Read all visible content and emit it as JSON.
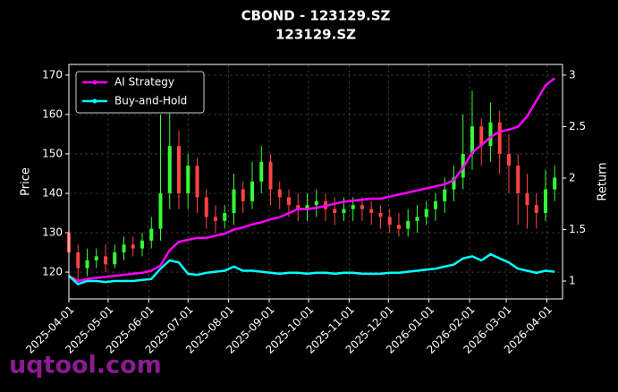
{
  "chart_data": {
    "type": "candlestick",
    "title": "CBOND - 123129.SZ",
    "subtitle": "123129.SZ",
    "y_label": "Price",
    "y2_label": "Return",
    "watermark": "uqtool.com",
    "up_color": "#33ff33",
    "down_color": "#ff4444",
    "grid": true,
    "legend": "upper-left",
    "x": [
      "2025-04-01",
      "2025-04-08",
      "2025-04-15",
      "2025-04-22",
      "2025-04-29",
      "2025-05-06",
      "2025-05-13",
      "2025-05-20",
      "2025-05-27",
      "2025-06-03",
      "2025-06-10",
      "2025-06-17",
      "2025-06-24",
      "2025-07-01",
      "2025-07-08",
      "2025-07-15",
      "2025-07-22",
      "2025-07-29",
      "2025-08-05",
      "2025-08-12",
      "2025-08-19",
      "2025-08-26",
      "2025-09-02",
      "2025-09-09",
      "2025-09-16",
      "2025-09-23",
      "2025-09-30",
      "2025-10-07",
      "2025-10-14",
      "2025-10-21",
      "2025-10-28",
      "2025-11-04",
      "2025-11-11",
      "2025-11-18",
      "2025-11-25",
      "2025-12-02",
      "2025-12-09",
      "2025-12-16",
      "2025-12-23",
      "2025-12-30",
      "2026-01-06",
      "2026-01-13",
      "2026-01-20",
      "2026-01-27",
      "2026-02-03",
      "2026-02-10",
      "2026-02-17",
      "2026-02-24",
      "2026-03-03",
      "2026-03-10",
      "2026-03-17",
      "2026-03-24",
      "2026-03-31",
      "2026-04-07"
    ],
    "open": [
      130,
      125,
      121,
      123,
      124,
      122,
      125,
      127,
      126,
      128,
      131,
      140,
      152,
      140,
      147,
      139,
      134,
      133,
      135,
      141,
      138,
      143,
      148,
      141,
      139,
      137,
      136,
      137,
      138,
      136,
      135,
      136,
      137,
      136,
      135,
      134,
      132,
      131,
      133,
      134,
      136,
      138,
      141,
      144,
      150,
      157,
      152,
      158,
      150,
      147,
      140,
      137,
      135,
      141
    ],
    "high": [
      132,
      127,
      126,
      126,
      127,
      127,
      129,
      129,
      130,
      134,
      160,
      165,
      156,
      150,
      149,
      141,
      137,
      137,
      145,
      143,
      148,
      152,
      150,
      143,
      141,
      140,
      140,
      141,
      140,
      139,
      139,
      139,
      139,
      138,
      137,
      136,
      135,
      136,
      137,
      138,
      140,
      144,
      147,
      160,
      166,
      159,
      163,
      161,
      155,
      150,
      145,
      140,
      146,
      147
    ],
    "low": [
      124,
      118,
      119,
      121,
      120,
      121,
      123,
      124,
      124,
      126,
      128,
      136,
      136,
      136,
      135,
      131,
      130,
      131,
      132,
      135,
      136,
      140,
      137,
      136,
      134,
      133,
      133,
      134,
      133,
      132,
      133,
      133,
      133,
      132,
      131,
      130,
      129,
      129,
      130,
      132,
      133,
      135,
      138,
      141,
      146,
      147,
      148,
      145,
      140,
      132,
      131,
      131,
      133,
      138
    ],
    "close": [
      125,
      121,
      123,
      124,
      122,
      125,
      127,
      126,
      128,
      131,
      140,
      152,
      140,
      147,
      139,
      134,
      133,
      135,
      141,
      138,
      143,
      148,
      141,
      139,
      137,
      136,
      137,
      138,
      136,
      135,
      136,
      137,
      136,
      135,
      134,
      132,
      131,
      133,
      134,
      136,
      138,
      141,
      144,
      150,
      157,
      152,
      158,
      150,
      147,
      140,
      137,
      135,
      141,
      144
    ],
    "series": [
      {
        "name": "AI Strategy",
        "color": "#ff00ff",
        "axis": "y2",
        "values": [
          1.05,
          1.0,
          1.02,
          1.03,
          1.04,
          1.05,
          1.06,
          1.07,
          1.08,
          1.1,
          1.15,
          1.3,
          1.38,
          1.4,
          1.42,
          1.42,
          1.44,
          1.46,
          1.5,
          1.52,
          1.55,
          1.57,
          1.6,
          1.62,
          1.66,
          1.7,
          1.7,
          1.71,
          1.73,
          1.75,
          1.77,
          1.78,
          1.79,
          1.8,
          1.8,
          1.82,
          1.84,
          1.86,
          1.88,
          1.9,
          1.92,
          1.94,
          1.98,
          2.1,
          2.25,
          2.32,
          2.4,
          2.45,
          2.47,
          2.5,
          2.6,
          2.75,
          2.9,
          2.97
        ]
      },
      {
        "name": "Buy-and-Hold",
        "color": "#00ffff",
        "axis": "y2",
        "values": [
          1.05,
          0.97,
          1.0,
          1.0,
          0.99,
          1.0,
          1.0,
          1.0,
          1.01,
          1.02,
          1.12,
          1.2,
          1.18,
          1.07,
          1.06,
          1.08,
          1.09,
          1.1,
          1.14,
          1.1,
          1.1,
          1.09,
          1.08,
          1.07,
          1.08,
          1.08,
          1.07,
          1.08,
          1.08,
          1.07,
          1.08,
          1.08,
          1.07,
          1.07,
          1.07,
          1.08,
          1.08,
          1.09,
          1.1,
          1.11,
          1.12,
          1.14,
          1.16,
          1.22,
          1.24,
          1.2,
          1.26,
          1.22,
          1.18,
          1.12,
          1.1,
          1.08,
          1.1,
          1.09
        ]
      }
    ],
    "xlim": [
      "2025-04-01",
      "2026-04-13"
    ],
    "xticks": [
      "2025-04-01",
      "2025-05-01",
      "2025-06-01",
      "2025-07-01",
      "2025-08-01",
      "2025-09-01",
      "2025-10-01",
      "2025-11-01",
      "2025-12-01",
      "2026-01-01",
      "2026-02-01",
      "2026-03-01",
      "2026-04-01"
    ],
    "ylim": [
      113.2,
      172.7
    ],
    "yticks": [
      120,
      130,
      140,
      150,
      160,
      170
    ],
    "y2lim": [
      0.826,
      3.104
    ],
    "y2ticks": [
      1.0,
      1.5,
      2.0,
      2.5,
      3.0
    ]
  }
}
